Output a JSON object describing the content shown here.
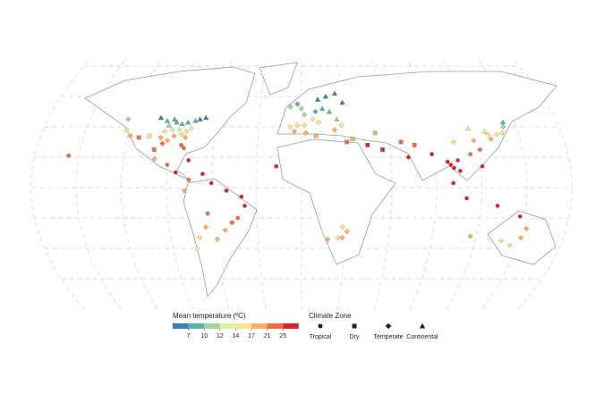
{
  "map": {
    "temperature_legend": {
      "title": "Mean temperature (ºC)",
      "ticks": [
        7,
        10,
        12,
        14,
        17,
        21,
        25
      ],
      "colors": [
        "#3b7fb6",
        "#5ab4a6",
        "#9fd6a0",
        "#dcefa2",
        "#fde28c",
        "#fbb061",
        "#f26b43",
        "#d4282c"
      ]
    },
    "zone_legend": {
      "title": "Climate Zone",
      "zones": [
        "Tropical",
        "Dry",
        "Temperate",
        "Continental"
      ]
    },
    "points": [
      [
        -88,
        43,
        8,
        3
      ],
      [
        -84,
        42,
        9,
        3
      ],
      [
        -80,
        43,
        8,
        3
      ],
      [
        -75,
        44,
        7,
        3
      ],
      [
        -72,
        45,
        6,
        3
      ],
      [
        -68,
        46,
        5,
        3
      ],
      [
        -90,
        45,
        7,
        3
      ],
      [
        -95,
        44,
        8,
        3
      ],
      [
        -100,
        46,
        6,
        3
      ],
      [
        -93,
        41,
        10,
        3
      ],
      [
        -85,
        38,
        13,
        2
      ],
      [
        -80,
        37,
        14,
        2
      ],
      [
        -90,
        38,
        13,
        2
      ],
      [
        -95,
        37,
        14,
        2
      ],
      [
        -77,
        39,
        12,
        2
      ],
      [
        -83,
        35,
        16,
        2
      ],
      [
        -88,
        34,
        17,
        2
      ],
      [
        -97,
        33,
        18,
        2
      ],
      [
        -80,
        33,
        18,
        2
      ],
      [
        -92,
        31,
        20,
        2
      ],
      [
        -105,
        34,
        15,
        1
      ],
      [
        -112,
        33,
        22,
        1
      ],
      [
        -118,
        34,
        17,
        2
      ],
      [
        -122,
        38,
        14,
        2
      ],
      [
        -123,
        45,
        11,
        2
      ],
      [
        -82,
        28,
        22,
        0
      ],
      [
        -80,
        26,
        24,
        0
      ],
      [
        -95,
        29,
        21,
        2
      ],
      [
        -100,
        25,
        23,
        1
      ],
      [
        -99,
        19,
        17,
        2
      ],
      [
        -90,
        15,
        24,
        0
      ],
      [
        -84,
        10,
        26,
        0
      ],
      [
        -76,
        18,
        26,
        0
      ],
      [
        -75,
        5,
        22,
        0
      ],
      [
        -66,
        9,
        26,
        0
      ],
      [
        -60,
        3,
        27,
        0
      ],
      [
        -50,
        -2,
        27,
        0
      ],
      [
        -40,
        -6,
        26,
        0
      ],
      [
        -38,
        -12,
        25,
        0
      ],
      [
        -43,
        -20,
        23,
        0
      ],
      [
        -47,
        -23,
        21,
        2
      ],
      [
        -52,
        -28,
        18,
        2
      ],
      [
        -58,
        -34,
        17,
        2
      ],
      [
        -70,
        -33,
        14,
        2
      ],
      [
        -73,
        -40,
        12,
        2
      ],
      [
        -78,
        -2,
        20,
        0
      ],
      [
        -63,
        -17,
        24,
        0
      ],
      [
        -65,
        -26,
        19,
        2
      ],
      [
        -8,
        40,
        16,
        2
      ],
      [
        -3,
        41,
        14,
        2
      ],
      [
        2,
        41,
        16,
        2
      ],
      [
        -5,
        37,
        18,
        2
      ],
      [
        8,
        45,
        12,
        2
      ],
      [
        12,
        43,
        14,
        2
      ],
      [
        2,
        48,
        11,
        2
      ],
      [
        10,
        50,
        9,
        2
      ],
      [
        0,
        52,
        10,
        2
      ],
      [
        -3,
        55,
        8,
        2
      ],
      [
        15,
        52,
        8,
        3
      ],
      [
        20,
        50,
        8,
        3
      ],
      [
        25,
        45,
        10,
        3
      ],
      [
        23,
        38,
        18,
        2
      ],
      [
        28,
        41,
        14,
        2
      ],
      [
        12,
        58,
        6,
        3
      ],
      [
        18,
        60,
        5,
        3
      ],
      [
        25,
        62,
        4,
        3
      ],
      [
        30,
        56,
        5,
        3
      ],
      [
        -8,
        53,
        10,
        2
      ],
      [
        35,
        32,
        19,
        1
      ],
      [
        45,
        28,
        25,
        1
      ],
      [
        55,
        25,
        27,
        1
      ],
      [
        68,
        30,
        21,
        1
      ],
      [
        77,
        28,
        24,
        1
      ],
      [
        51,
        36,
        17,
        1
      ],
      [
        72,
        20,
        27,
        0
      ],
      [
        88,
        22,
        26,
        0
      ],
      [
        100,
        15,
        28,
        0
      ],
      [
        102,
        13,
        28,
        0
      ],
      [
        105,
        18,
        27,
        0
      ],
      [
        106,
        11,
        28,
        0
      ],
      [
        98,
        17,
        27,
        0
      ],
      [
        101,
        3,
        28,
        0
      ],
      [
        110,
        -7,
        27,
        0
      ],
      [
        121,
        14,
        27,
        0
      ],
      [
        114,
        22,
        22,
        0
      ],
      [
        121,
        25,
        21,
        2
      ],
      [
        118,
        31,
        17,
        2
      ],
      [
        116,
        39,
        12,
        3
      ],
      [
        127,
        37,
        12,
        3
      ],
      [
        129,
        35,
        14,
        2
      ],
      [
        135,
        35,
        15,
        2
      ],
      [
        139,
        36,
        14,
        2
      ],
      [
        141,
        40,
        11,
        2
      ],
      [
        142,
        43,
        8,
        3
      ],
      [
        130,
        32,
        17,
        2
      ],
      [
        104,
        30,
        16,
        2
      ],
      [
        -17,
        14,
        26,
        0
      ],
      [
        3,
        36,
        17,
        2
      ],
      [
        10,
        34,
        19,
        1
      ],
      [
        31,
        30,
        21,
        1
      ],
      [
        28,
        -26,
        16,
        2
      ],
      [
        31,
        -29,
        20,
        2
      ],
      [
        18,
        -34,
        17,
        2
      ],
      [
        25,
        -33,
        16,
        2
      ],
      [
        28,
        -33,
        17,
        2
      ],
      [
        153,
        -27,
        20,
        2
      ],
      [
        151,
        -33,
        18,
        2
      ],
      [
        145,
        -38,
        14,
        2
      ],
      [
        138,
        -35,
        16,
        2
      ],
      [
        116,
        -32,
        18,
        2
      ],
      [
        147,
        -19,
        25,
        0
      ],
      [
        131,
        -12,
        27,
        0
      ],
      [
        -157,
        21,
        24,
        0
      ]
    ]
  }
}
